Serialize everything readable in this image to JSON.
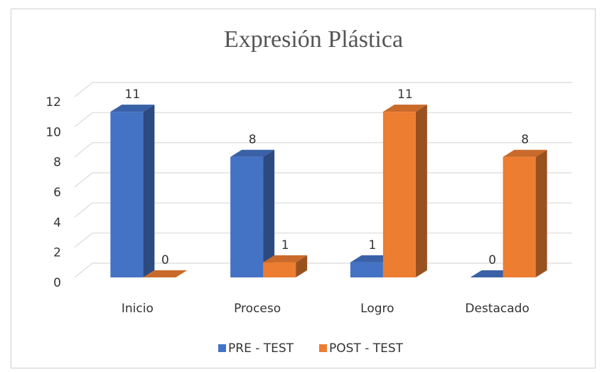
{
  "chart_data": {
    "type": "bar3d",
    "title": "Expresión Plástica",
    "categories": [
      "Inicio",
      "Proceso",
      "Logro",
      "Destacado"
    ],
    "series": [
      {
        "name": "PRE - TEST",
        "color": "#4472c4",
        "values": [
          11,
          8,
          1,
          0
        ]
      },
      {
        "name": "POST - TEST",
        "color": "#ed7d31",
        "values": [
          0,
          1,
          11,
          8
        ]
      }
    ],
    "ylim": [
      0,
      12
    ],
    "yticks": [
      0,
      2,
      4,
      6,
      8,
      10,
      12
    ],
    "grid": true,
    "legend": "bottom"
  }
}
